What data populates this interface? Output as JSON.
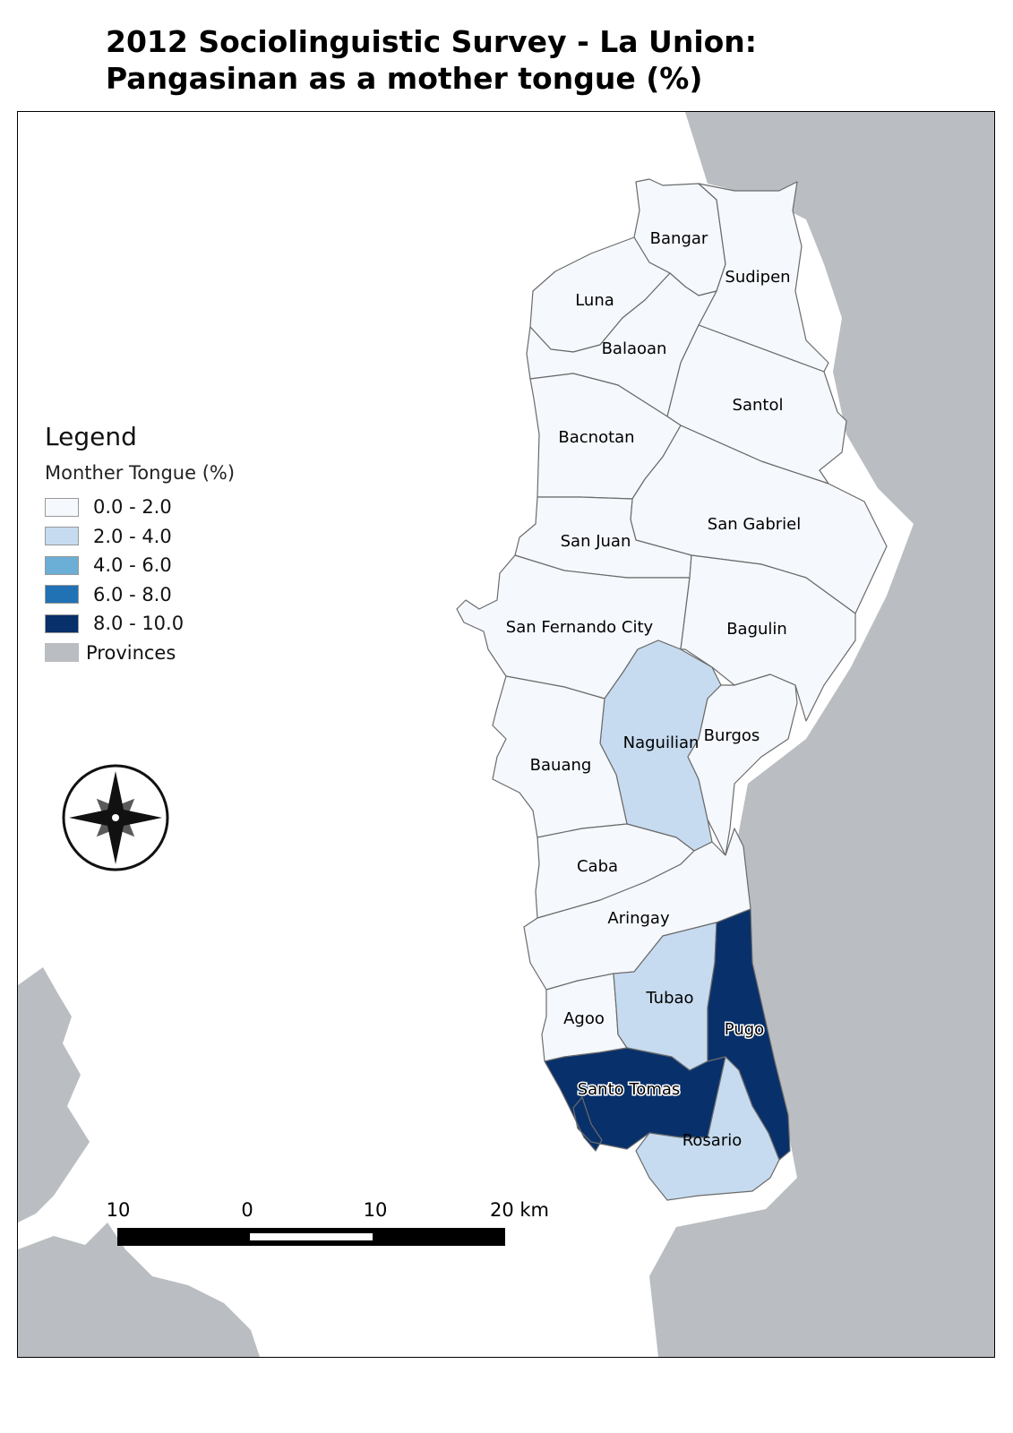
{
  "title": {
    "line1": "2012 Sociolinguistic Survey - La Union:",
    "line2": "Pangasinan as a mother tongue (%)"
  },
  "legend": {
    "title": "Legend",
    "subtitle": "Monther Tongue (%)",
    "classes": [
      {
        "label": "0.0 - 2.0",
        "color": "#f5f8fd"
      },
      {
        "label": "2.0 - 4.0",
        "color": "#c6dbef"
      },
      {
        "label": "4.0 - 6.0",
        "color": "#6baed6"
      },
      {
        "label": "6.0 - 8.0",
        "color": "#2171b5"
      },
      {
        "label": "8.0 - 10.0",
        "color": "#08306b"
      }
    ],
    "provinces": {
      "label": "Provinces",
      "color": "#babdc1"
    }
  },
  "map": {
    "background": "#ffffff",
    "province_color": "#babdc1",
    "icon": "compass-rose-icon"
  },
  "municipalities": [
    {
      "name": "Bangar",
      "class": "0.0 - 2.0"
    },
    {
      "name": "Sudipen",
      "class": "0.0 - 2.0"
    },
    {
      "name": "Luna",
      "class": "0.0 - 2.0"
    },
    {
      "name": "Balaoan",
      "class": "0.0 - 2.0"
    },
    {
      "name": "Santol",
      "class": "0.0 - 2.0"
    },
    {
      "name": "Bacnotan",
      "class": "0.0 - 2.0"
    },
    {
      "name": "San Gabriel",
      "class": "0.0 - 2.0"
    },
    {
      "name": "San Juan",
      "class": "0.0 - 2.0"
    },
    {
      "name": "San Fernando City",
      "class": "0.0 - 2.0"
    },
    {
      "name": "Bagulin",
      "class": "0.0 - 2.0"
    },
    {
      "name": "Naguilian",
      "class": "2.0 - 4.0"
    },
    {
      "name": "Burgos",
      "class": "0.0 - 2.0"
    },
    {
      "name": "Bauang",
      "class": "0.0 - 2.0"
    },
    {
      "name": "Caba",
      "class": "0.0 - 2.0"
    },
    {
      "name": "Aringay",
      "class": "0.0 - 2.0"
    },
    {
      "name": "Agoo",
      "class": "0.0 - 2.0"
    },
    {
      "name": "Tubao",
      "class": "2.0 - 4.0"
    },
    {
      "name": "Pugo",
      "class": "8.0 - 10.0"
    },
    {
      "name": "Santo Tomas",
      "class": "8.0 - 10.0"
    },
    {
      "name": "Rosario",
      "class": "2.0 - 4.0"
    }
  ],
  "scale_bar": {
    "labels": [
      "10",
      "0",
      "10",
      "20 km"
    ]
  }
}
